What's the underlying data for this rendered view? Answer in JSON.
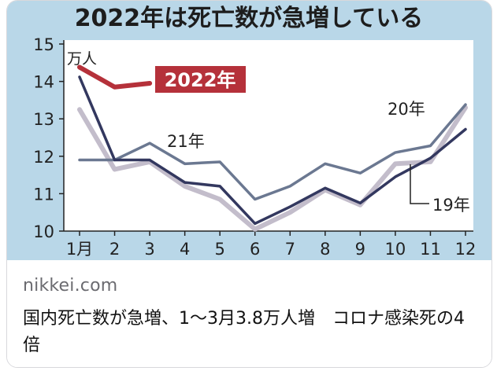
{
  "card": {
    "domain": "nikkei.com",
    "headline": "国内死亡数が急増、1〜3月3.8万人増　コロナ感染死の4倍"
  },
  "chart_data": {
    "type": "line",
    "title": "2022年は死亡数が急増している",
    "ylabel": "万人",
    "ylim": [
      10,
      15
    ],
    "y_ticks": [
      "10",
      "11",
      "12",
      "13",
      "14",
      "15"
    ],
    "x_ticks": [
      "1月",
      "2",
      "3",
      "4",
      "5",
      "6",
      "7",
      "8",
      "9",
      "10",
      "11",
      "12"
    ],
    "series": [
      {
        "name": "2022年",
        "color": "#b5313a",
        "x": [
          1,
          2,
          3
        ],
        "values": [
          14.38,
          13.85,
          13.95
        ]
      },
      {
        "name": "21年",
        "color": "#33385f",
        "x": [
          1,
          2,
          3,
          4,
          5,
          6,
          7,
          8,
          9,
          10,
          11,
          12
        ],
        "values": [
          14.12,
          11.9,
          11.9,
          11.3,
          11.2,
          10.2,
          10.65,
          11.15,
          10.75,
          11.45,
          11.95,
          12.72
        ]
      },
      {
        "name": "20年",
        "color": "#6b7891",
        "x": [
          1,
          2,
          3,
          4,
          5,
          6,
          7,
          8,
          9,
          10,
          11,
          12
        ],
        "values": [
          11.9,
          11.9,
          12.35,
          11.8,
          11.85,
          10.85,
          11.2,
          11.8,
          11.55,
          12.1,
          12.28,
          13.38
        ]
      },
      {
        "name": "19年",
        "color": "#c3bdcb",
        "x": [
          1,
          2,
          3,
          4,
          5,
          6,
          7,
          8,
          9,
          10,
          11,
          12
        ],
        "values": [
          13.25,
          11.65,
          11.85,
          11.2,
          10.85,
          10.05,
          10.5,
          11.1,
          10.7,
          11.8,
          11.85,
          13.3
        ]
      }
    ],
    "annotations": {
      "y2022": "2022年",
      "y21": "21年",
      "y20": "20年",
      "y19": "19年"
    },
    "colors": {
      "background": "#b9d7e8",
      "plot": "#ffffff",
      "label_box": "#b5313a"
    }
  }
}
